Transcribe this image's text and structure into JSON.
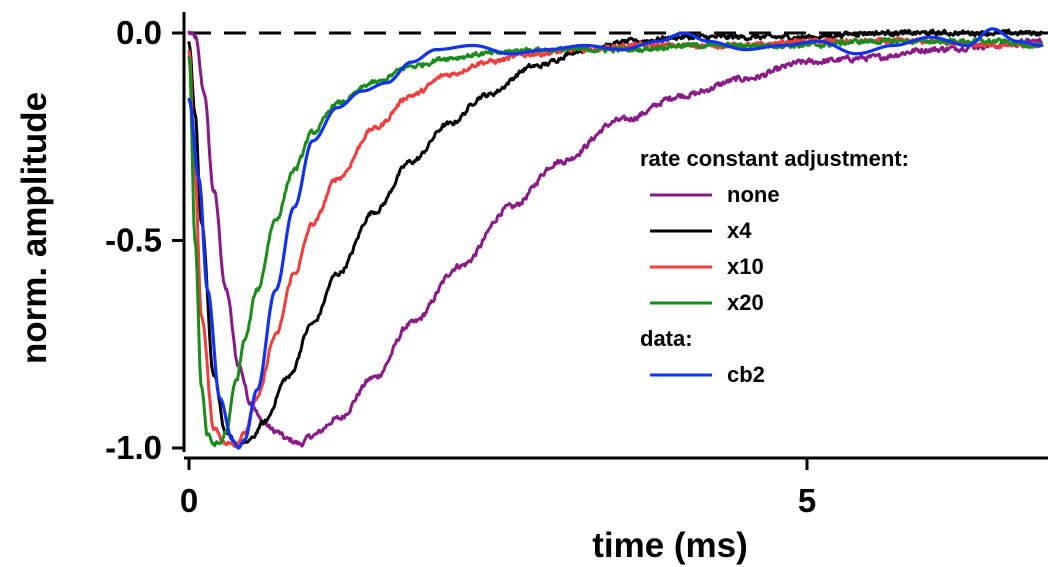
{
  "chart_data": {
    "type": "line",
    "xlabel": "time (ms)",
    "ylabel": "norm. amplitude",
    "xlim": [
      -0.05,
      6.9
    ],
    "ylim": [
      -1.02,
      0.04
    ],
    "x_ticks": [
      {
        "value": 0,
        "label": "0"
      },
      {
        "value": 5,
        "label": "5"
      }
    ],
    "y_ticks": [
      {
        "value": 0.0,
        "label": "0.0"
      },
      {
        "value": -0.5,
        "label": "-0.5"
      },
      {
        "value": -1.0,
        "label": "-1.0"
      }
    ],
    "zero_line": {
      "y": 0,
      "style": "dashed"
    },
    "grid": false,
    "legend_placement": "right",
    "legend_groups": [
      {
        "heading": "rate constant adjustment:",
        "series": [
          "none",
          "x4",
          "x10",
          "x20"
        ]
      },
      {
        "heading": "data:",
        "series": [
          "cb2"
        ]
      }
    ],
    "series": [
      {
        "name": "none",
        "color": "#8B1A89",
        "noise": 0.006,
        "x": [
          0.0,
          0.05,
          0.12,
          0.2,
          0.3,
          0.4,
          0.5,
          0.6,
          0.7,
          0.8,
          0.9,
          1.0,
          1.2,
          1.5,
          1.8,
          2.2,
          2.6,
          3.0,
          3.5,
          4.0,
          4.5,
          5.0,
          5.5,
          6.0,
          6.5,
          6.9
        ],
        "y": [
          0.0,
          -0.01,
          -0.14,
          -0.38,
          -0.62,
          -0.8,
          -0.89,
          -0.94,
          -0.96,
          -0.98,
          -0.99,
          -0.97,
          -0.93,
          -0.83,
          -0.7,
          -0.56,
          -0.42,
          -0.31,
          -0.21,
          -0.15,
          -0.11,
          -0.07,
          -0.06,
          -0.04,
          -0.03,
          -0.02
        ]
      },
      {
        "name": "x4",
        "color": "#000000",
        "noise": 0.005,
        "x": [
          0.0,
          0.05,
          0.1,
          0.2,
          0.3,
          0.4,
          0.45,
          0.5,
          0.6,
          0.8,
          1.0,
          1.2,
          1.5,
          1.8,
          2.1,
          2.4,
          2.8,
          3.2,
          3.6,
          4.0,
          4.5,
          5.0,
          5.5,
          6.0,
          6.5,
          6.9
        ],
        "y": [
          -0.02,
          -0.2,
          -0.45,
          -0.82,
          -0.97,
          -0.99,
          -0.99,
          -0.98,
          -0.94,
          -0.83,
          -0.7,
          -0.58,
          -0.43,
          -0.31,
          -0.22,
          -0.15,
          -0.08,
          -0.04,
          -0.02,
          -0.01,
          -0.01,
          -0.01,
          0.0,
          0.0,
          0.0,
          0.0
        ]
      },
      {
        "name": "x10",
        "color": "#F23D3D",
        "noise": 0.005,
        "x": [
          0.0,
          0.05,
          0.1,
          0.2,
          0.3,
          0.38,
          0.45,
          0.55,
          0.7,
          0.85,
          1.0,
          1.2,
          1.5,
          1.8,
          2.1,
          2.4,
          2.8,
          3.2,
          3.6,
          4.0,
          4.5,
          5.0,
          5.5,
          6.0,
          6.5,
          6.9
        ],
        "y": [
          -0.04,
          -0.35,
          -0.68,
          -0.95,
          -0.99,
          -0.99,
          -0.96,
          -0.88,
          -0.73,
          -0.58,
          -0.46,
          -0.35,
          -0.23,
          -0.15,
          -0.1,
          -0.07,
          -0.05,
          -0.04,
          -0.03,
          -0.03,
          -0.03,
          -0.02,
          -0.02,
          -0.02,
          -0.03,
          -0.03
        ]
      },
      {
        "name": "x20",
        "color": "#1A8C1A",
        "noise": 0.005,
        "x": [
          0.0,
          0.05,
          0.1,
          0.15,
          0.2,
          0.25,
          0.3,
          0.38,
          0.45,
          0.55,
          0.7,
          0.85,
          1.0,
          1.2,
          1.5,
          1.8,
          2.1,
          2.4,
          2.8,
          3.2,
          3.6,
          4.0,
          4.5,
          5.0,
          5.5,
          6.0,
          6.5,
          6.9
        ],
        "y": [
          -0.06,
          -0.5,
          -0.85,
          -0.97,
          -0.99,
          -0.99,
          -0.96,
          -0.84,
          -0.74,
          -0.62,
          -0.45,
          -0.33,
          -0.24,
          -0.17,
          -0.12,
          -0.08,
          -0.06,
          -0.05,
          -0.04,
          -0.04,
          -0.04,
          -0.03,
          -0.03,
          -0.03,
          -0.02,
          -0.02,
          -0.02,
          -0.03
        ]
      },
      {
        "name": "cb2",
        "color": "#1133EE",
        "noise": 0,
        "x": [
          0.0,
          0.08,
          0.15,
          0.25,
          0.35,
          0.4,
          0.45,
          0.55,
          0.7,
          0.85,
          1.0,
          1.2,
          1.4,
          1.6,
          1.8,
          2.0,
          2.3,
          2.6,
          2.9,
          3.2,
          3.5,
          3.8,
          4.0,
          4.2,
          4.5,
          4.8,
          5.1,
          5.4,
          5.7,
          6.0,
          6.3,
          6.5,
          6.7,
          6.9
        ],
        "y": [
          -0.16,
          -0.35,
          -0.62,
          -0.88,
          -0.98,
          -1.0,
          -0.98,
          -0.86,
          -0.62,
          -0.42,
          -0.26,
          -0.18,
          -0.14,
          -0.12,
          -0.07,
          -0.04,
          -0.03,
          -0.05,
          -0.04,
          -0.03,
          -0.04,
          -0.02,
          0.0,
          -0.02,
          -0.04,
          -0.03,
          -0.02,
          -0.05,
          -0.03,
          -0.01,
          -0.03,
          0.01,
          -0.02,
          -0.03
        ]
      }
    ]
  }
}
